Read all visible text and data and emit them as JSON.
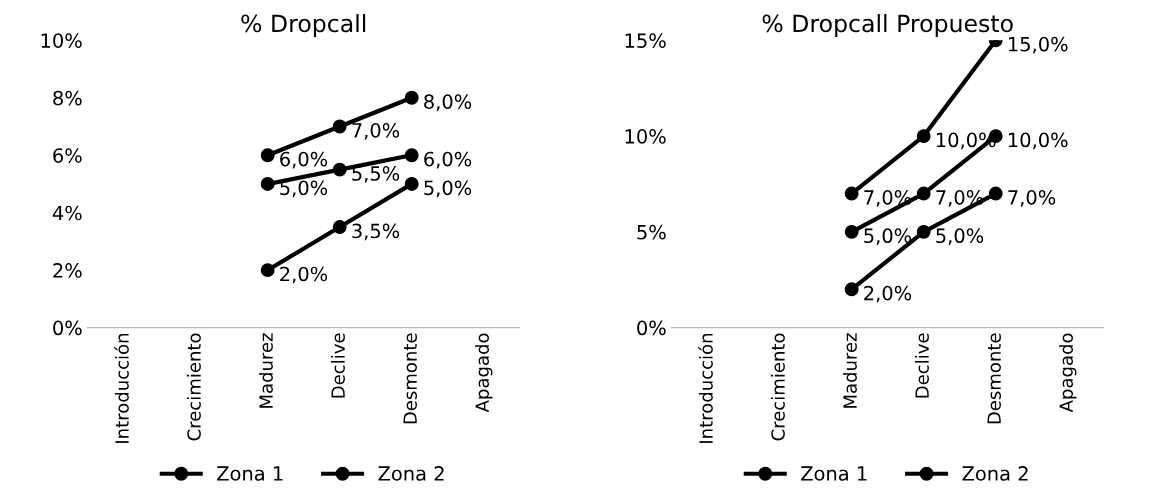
{
  "chart_data": [
    {
      "type": "line",
      "title": "% Dropcall",
      "categories": [
        "Introducción",
        "Crecimiento",
        "Madurez",
        "Declive",
        "Desmonte",
        "Apagado"
      ],
      "ylim": [
        0,
        10
      ],
      "yticks": [
        {
          "value": 0,
          "label": "0%"
        },
        {
          "value": 2,
          "label": "2%"
        },
        {
          "value": 4,
          "label": "4%"
        },
        {
          "value": 6,
          "label": "6%"
        },
        {
          "value": 8,
          "label": "8%"
        },
        {
          "value": 10,
          "label": "10%"
        }
      ],
      "marker": "circle",
      "line_style": "solid",
      "legend": "bottom",
      "grid": false,
      "series": [
        {
          "name": "Zona 1",
          "color": "#000000",
          "values": [
            null,
            null,
            6,
            7,
            8,
            null
          ],
          "value_labels": [
            null,
            null,
            "6,0%",
            "7,0%",
            "8,0%",
            null
          ]
        },
        {
          "name": "Zona 2",
          "color": "#000000",
          "values": [
            null,
            null,
            5,
            5.5,
            6,
            null
          ],
          "value_labels": [
            null,
            null,
            "5,0%",
            "5,5%",
            "6,0%",
            null
          ]
        },
        {
          "color": "#000000",
          "values": [
            null,
            null,
            2,
            3.5,
            5,
            null
          ],
          "value_labels": [
            null,
            null,
            "2,0%",
            "3,5%",
            "5,0%",
            null
          ]
        }
      ]
    },
    {
      "type": "line",
      "title": "% Dropcall Propuesto",
      "categories": [
        "Introducción",
        "Crecimiento",
        "Madurez",
        "Declive",
        "Desmonte",
        "Apagado"
      ],
      "ylim": [
        0,
        15
      ],
      "yticks": [
        {
          "value": 0,
          "label": "0%"
        },
        {
          "value": 5,
          "label": "5%"
        },
        {
          "value": 10,
          "label": "10%"
        },
        {
          "value": 15,
          "label": "15%"
        }
      ],
      "marker": "circle",
      "line_style": "solid",
      "legend": "bottom",
      "grid": false,
      "series": [
        {
          "name": "Zona 1",
          "color": "#000000",
          "values": [
            null,
            null,
            7,
            10,
            15,
            null
          ],
          "value_labels": [
            null,
            null,
            "7,0%",
            "10,0%",
            "15,0%",
            null
          ]
        },
        {
          "name": "Zona 2",
          "color": "#000000",
          "values": [
            null,
            null,
            5,
            7,
            10,
            null
          ],
          "value_labels": [
            null,
            null,
            "5,0%",
            "7,0%",
            "10,0%",
            null
          ]
        },
        {
          "color": "#000000",
          "values": [
            null,
            null,
            2,
            5,
            7,
            null
          ],
          "value_labels": [
            null,
            null,
            "2,0%",
            "5,0%",
            "7,0%",
            null
          ]
        }
      ]
    }
  ]
}
